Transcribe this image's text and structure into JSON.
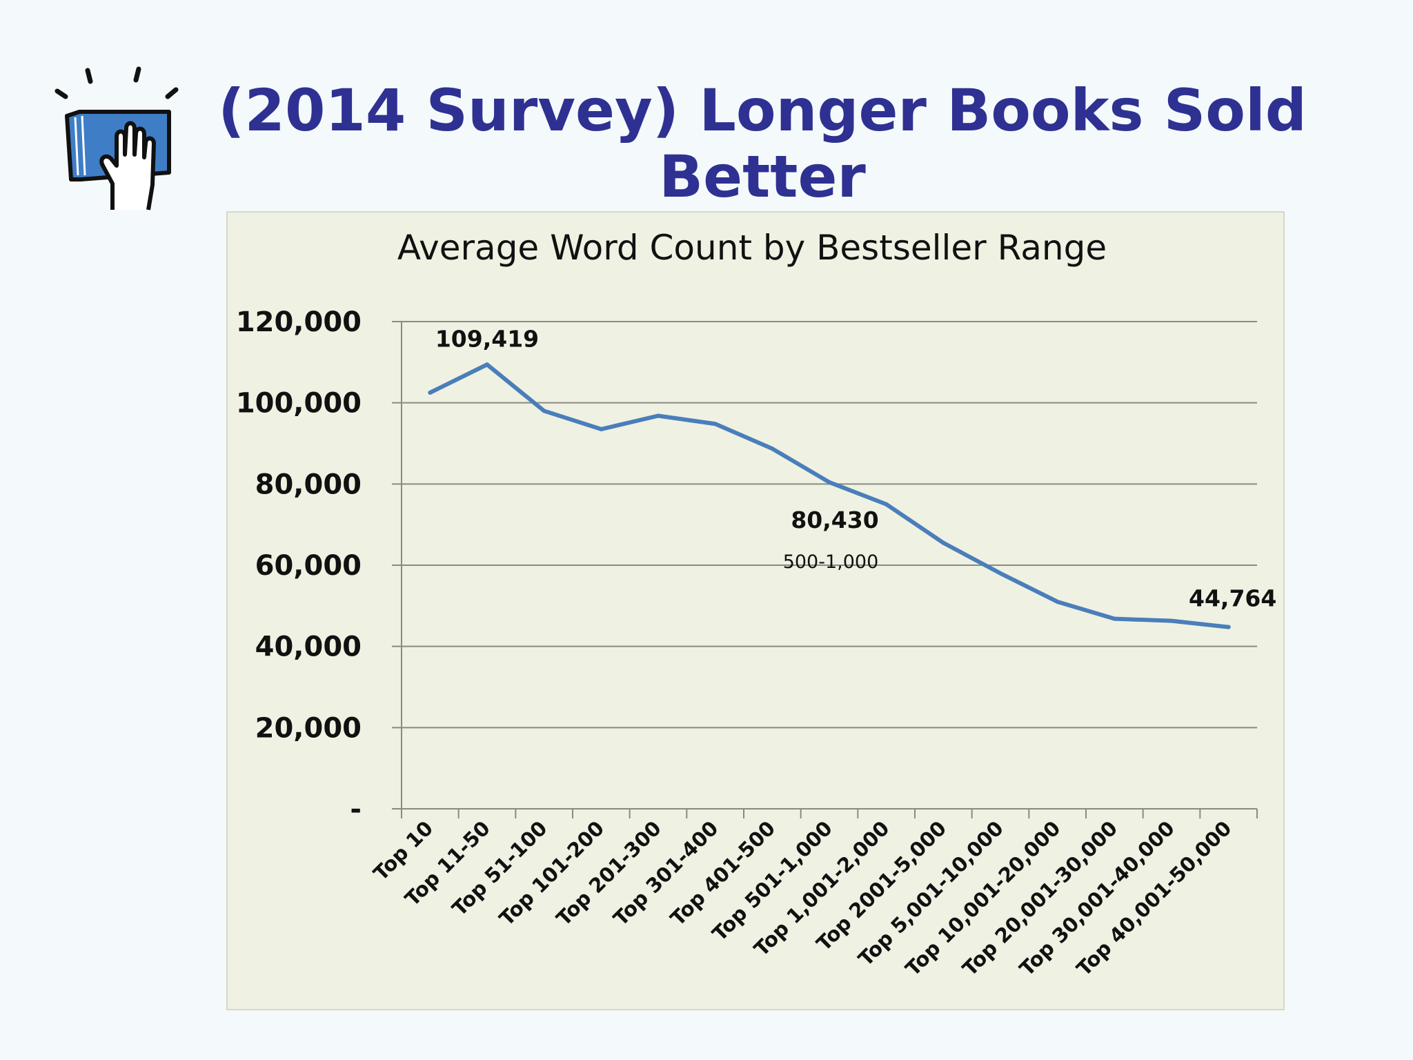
{
  "slide": {
    "title": "(2014 Survey) Longer Books Sold Better",
    "logo_icon": "hand-on-book-icon"
  },
  "chart_data": {
    "type": "line",
    "title": "Average Word Count by Bestseller Range",
    "xlabel": "",
    "ylabel": "",
    "ylim": [
      0,
      120000
    ],
    "yticks": [
      "-",
      "20,000",
      "40,000",
      "60,000",
      "80,000",
      "100,000",
      "120,000"
    ],
    "categories": [
      "Top 10",
      "Top 11-50",
      "Top 51-100",
      "Top 101-200",
      "Top 201-300",
      "Top 301-400",
      "Top 401-500",
      "Top 501-1,000",
      "Top 1,001-2,000",
      "Top 2001-5,000",
      "Top 5,001-10,000",
      "Top 10,001-20,000",
      "Top 20,001-30,000",
      "Top 30,001-40,000",
      "Top 40,001-50,000"
    ],
    "series": [
      {
        "values": [
          102500,
          109419,
          98000,
          93500,
          96800,
          94800,
          88700,
          80430,
          75000,
          65500,
          58000,
          51000,
          46800,
          46300,
          44764
        ]
      }
    ],
    "data_labels": [
      {
        "index": 1,
        "text": "109,419"
      },
      {
        "index": 7,
        "text": "80,430",
        "note": "500-1,000"
      },
      {
        "index": 14,
        "text": "44,764"
      }
    ],
    "grid": true,
    "legend": "none",
    "line_color": "#4a7ebb"
  }
}
